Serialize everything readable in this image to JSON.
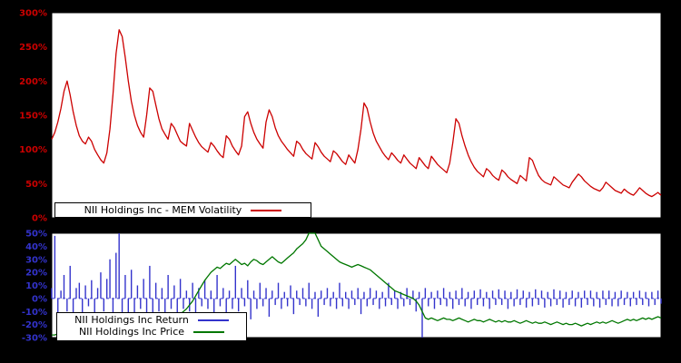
{
  "colors": {
    "background": "#000000",
    "plot_background": "#ffffff",
    "volatility": "#cc0000",
    "return": "#3333cc",
    "price": "#007700",
    "legend_text": "#000000"
  },
  "legends": {
    "volatility_label": "NII Holdings Inc - MEM Volatility",
    "return_label": "NII Holdings Inc Return",
    "price_label": "NII Holdings Inc Price"
  },
  "chart_data": [
    {
      "type": "line",
      "title": "",
      "xlabel": "",
      "ylabel": "",
      "ylim": [
        0,
        300
      ],
      "yticks": [
        0,
        50,
        100,
        150,
        200,
        250,
        300
      ],
      "ytick_suffix": "%",
      "ytick_color": "#cc0000",
      "grid": false,
      "legend_position": "bottom-left",
      "series": [
        {
          "name": "NII Holdings Inc - MEM Volatility",
          "type": "line",
          "color": "#cc0000",
          "values": [
            115,
            125,
            140,
            160,
            185,
            200,
            180,
            155,
            135,
            120,
            112,
            108,
            118,
            112,
            100,
            92,
            85,
            80,
            95,
            130,
            180,
            240,
            275,
            265,
            235,
            200,
            170,
            150,
            135,
            125,
            118,
            150,
            190,
            185,
            165,
            145,
            130,
            122,
            115,
            138,
            132,
            122,
            112,
            108,
            105,
            138,
            128,
            118,
            110,
            104,
            100,
            96,
            110,
            105,
            98,
            92,
            88,
            120,
            115,
            105,
            98,
            92,
            105,
            148,
            155,
            138,
            125,
            115,
            108,
            102,
            140,
            158,
            148,
            132,
            120,
            112,
            106,
            100,
            95,
            90,
            112,
            108,
            100,
            94,
            90,
            86,
            110,
            104,
            96,
            90,
            86,
            82,
            98,
            94,
            88,
            82,
            78,
            92,
            86,
            80,
            100,
            130,
            168,
            160,
            140,
            124,
            112,
            104,
            96,
            90,
            85,
            95,
            90,
            84,
            80,
            92,
            86,
            80,
            76,
            72,
            88,
            82,
            76,
            72,
            90,
            84,
            78,
            74,
            70,
            66,
            80,
            110,
            145,
            138,
            120,
            105,
            92,
            82,
            74,
            68,
            64,
            60,
            72,
            68,
            62,
            58,
            55,
            70,
            66,
            60,
            56,
            53,
            50,
            62,
            58,
            54,
            88,
            84,
            72,
            62,
            56,
            52,
            50,
            48,
            60,
            56,
            52,
            48,
            46,
            44,
            52,
            58,
            64,
            60,
            54,
            50,
            46,
            43,
            41,
            39,
            44,
            52,
            48,
            44,
            40,
            38,
            36,
            42,
            38,
            35,
            33,
            38,
            44,
            40,
            36,
            33,
            31,
            34,
            37,
            33
          ]
        }
      ]
    },
    {
      "type": "mixed",
      "title": "",
      "xlabel": "",
      "ylabel": "",
      "ylim": [
        -30,
        50
      ],
      "yticks": [
        -30,
        -20,
        -10,
        0,
        10,
        20,
        30,
        40,
        50
      ],
      "ytick_suffix": "%",
      "ytick_color": "#3333cc",
      "grid": false,
      "zero_line": {
        "style": "dashed",
        "color": "#3333cc"
      },
      "legend_position": "bottom-left",
      "series": [
        {
          "name": "NII Holdings Inc Return",
          "type": "bar",
          "color": "#3333cc",
          "values": [
            8,
            48,
            -12,
            6,
            18,
            -10,
            25,
            -15,
            8,
            12,
            -18,
            10,
            -6,
            14,
            -12,
            8,
            20,
            -10,
            15,
            30,
            -20,
            35,
            55,
            -25,
            18,
            -12,
            22,
            -15,
            10,
            -8,
            15,
            -12,
            25,
            -18,
            12,
            -10,
            8,
            -14,
            18,
            -8,
            10,
            -12,
            15,
            -8,
            6,
            -10,
            12,
            -15,
            8,
            -6,
            14,
            -8,
            6,
            -12,
            18,
            -6,
            8,
            -14,
            6,
            -8,
            25,
            -10,
            8,
            -6,
            14,
            -16,
            6,
            -8,
            12,
            -6,
            8,
            -14,
            6,
            -5,
            12,
            -8,
            5,
            -6,
            10,
            -12,
            6,
            -5,
            8,
            -6,
            12,
            -8,
            5,
            -14,
            6,
            -5,
            8,
            -6,
            5,
            -8,
            12,
            -6,
            5,
            -8,
            6,
            -5,
            8,
            -12,
            5,
            -6,
            8,
            -5,
            6,
            -8,
            5,
            -6,
            12,
            -5,
            6,
            -8,
            5,
            -6,
            8,
            -5,
            6,
            -10,
            5,
            -35,
            8,
            -6,
            5,
            -8,
            6,
            -5,
            8,
            -6,
            5,
            -8,
            6,
            -5,
            8,
            -6,
            5,
            -8,
            6,
            -5,
            7,
            -6,
            5,
            -8,
            6,
            -5,
            7,
            -5,
            6,
            -8,
            5,
            -6,
            7,
            -5,
            6,
            -7,
            5,
            -6,
            7,
            -5,
            6,
            -7,
            5,
            -6,
            7,
            -5,
            6,
            -7,
            5,
            -5,
            6,
            -6,
            5,
            -7,
            6,
            -5,
            6,
            -6,
            5,
            -7,
            6,
            -5,
            6,
            -6,
            5,
            -6,
            6,
            -5,
            5,
            -6,
            5,
            -5,
            6,
            -5,
            5,
            -6,
            5,
            -5,
            6,
            -4
          ]
        },
        {
          "name": "NII Holdings Inc Price",
          "type": "line",
          "color": "#007700",
          "values": [
            -28,
            -28,
            -27,
            -28,
            -29,
            -28,
            -27,
            -28,
            -28,
            -27,
            -28,
            -29,
            -28,
            -27,
            -26,
            -27,
            -28,
            -27,
            -26,
            -27,
            -26,
            -27,
            -26,
            -25,
            -26,
            -27,
            -26,
            -25,
            -26,
            -25,
            -24,
            -25,
            -24,
            -23,
            -24,
            -25,
            -24,
            -23,
            -22,
            -21,
            -18,
            -15,
            -12,
            -10,
            -8,
            -5,
            -2,
            2,
            6,
            10,
            14,
            17,
            20,
            22,
            24,
            23,
            25,
            27,
            26,
            28,
            30,
            28,
            26,
            27,
            25,
            28,
            30,
            29,
            27,
            26,
            28,
            30,
            32,
            30,
            28,
            27,
            29,
            31,
            33,
            35,
            38,
            40,
            42,
            45,
            50,
            55,
            52,
            45,
            40,
            38,
            36,
            34,
            32,
            30,
            28,
            27,
            26,
            25,
            24,
            25,
            26,
            25,
            24,
            23,
            22,
            20,
            18,
            16,
            14,
            12,
            10,
            8,
            6,
            5,
            4,
            3,
            2,
            1,
            0,
            -2,
            -5,
            -10,
            -15,
            -16,
            -15,
            -16,
            -17,
            -16,
            -15,
            -16,
            -16,
            -17,
            -16,
            -15,
            -16,
            -17,
            -18,
            -17,
            -16,
            -17,
            -17,
            -18,
            -17,
            -16,
            -17,
            -18,
            -17,
            -18,
            -17,
            -18,
            -18,
            -17,
            -18,
            -19,
            -18,
            -17,
            -18,
            -19,
            -18,
            -19,
            -19,
            -18,
            -19,
            -20,
            -19,
            -18,
            -19,
            -20,
            -19,
            -20,
            -20,
            -19,
            -20,
            -21,
            -20,
            -19,
            -20,
            -19,
            -18,
            -19,
            -18,
            -19,
            -18,
            -17,
            -18,
            -19,
            -18,
            -17,
            -16,
            -17,
            -16,
            -17,
            -16,
            -15,
            -16,
            -15,
            -16,
            -15,
            -14,
            -15
          ]
        }
      ]
    }
  ]
}
